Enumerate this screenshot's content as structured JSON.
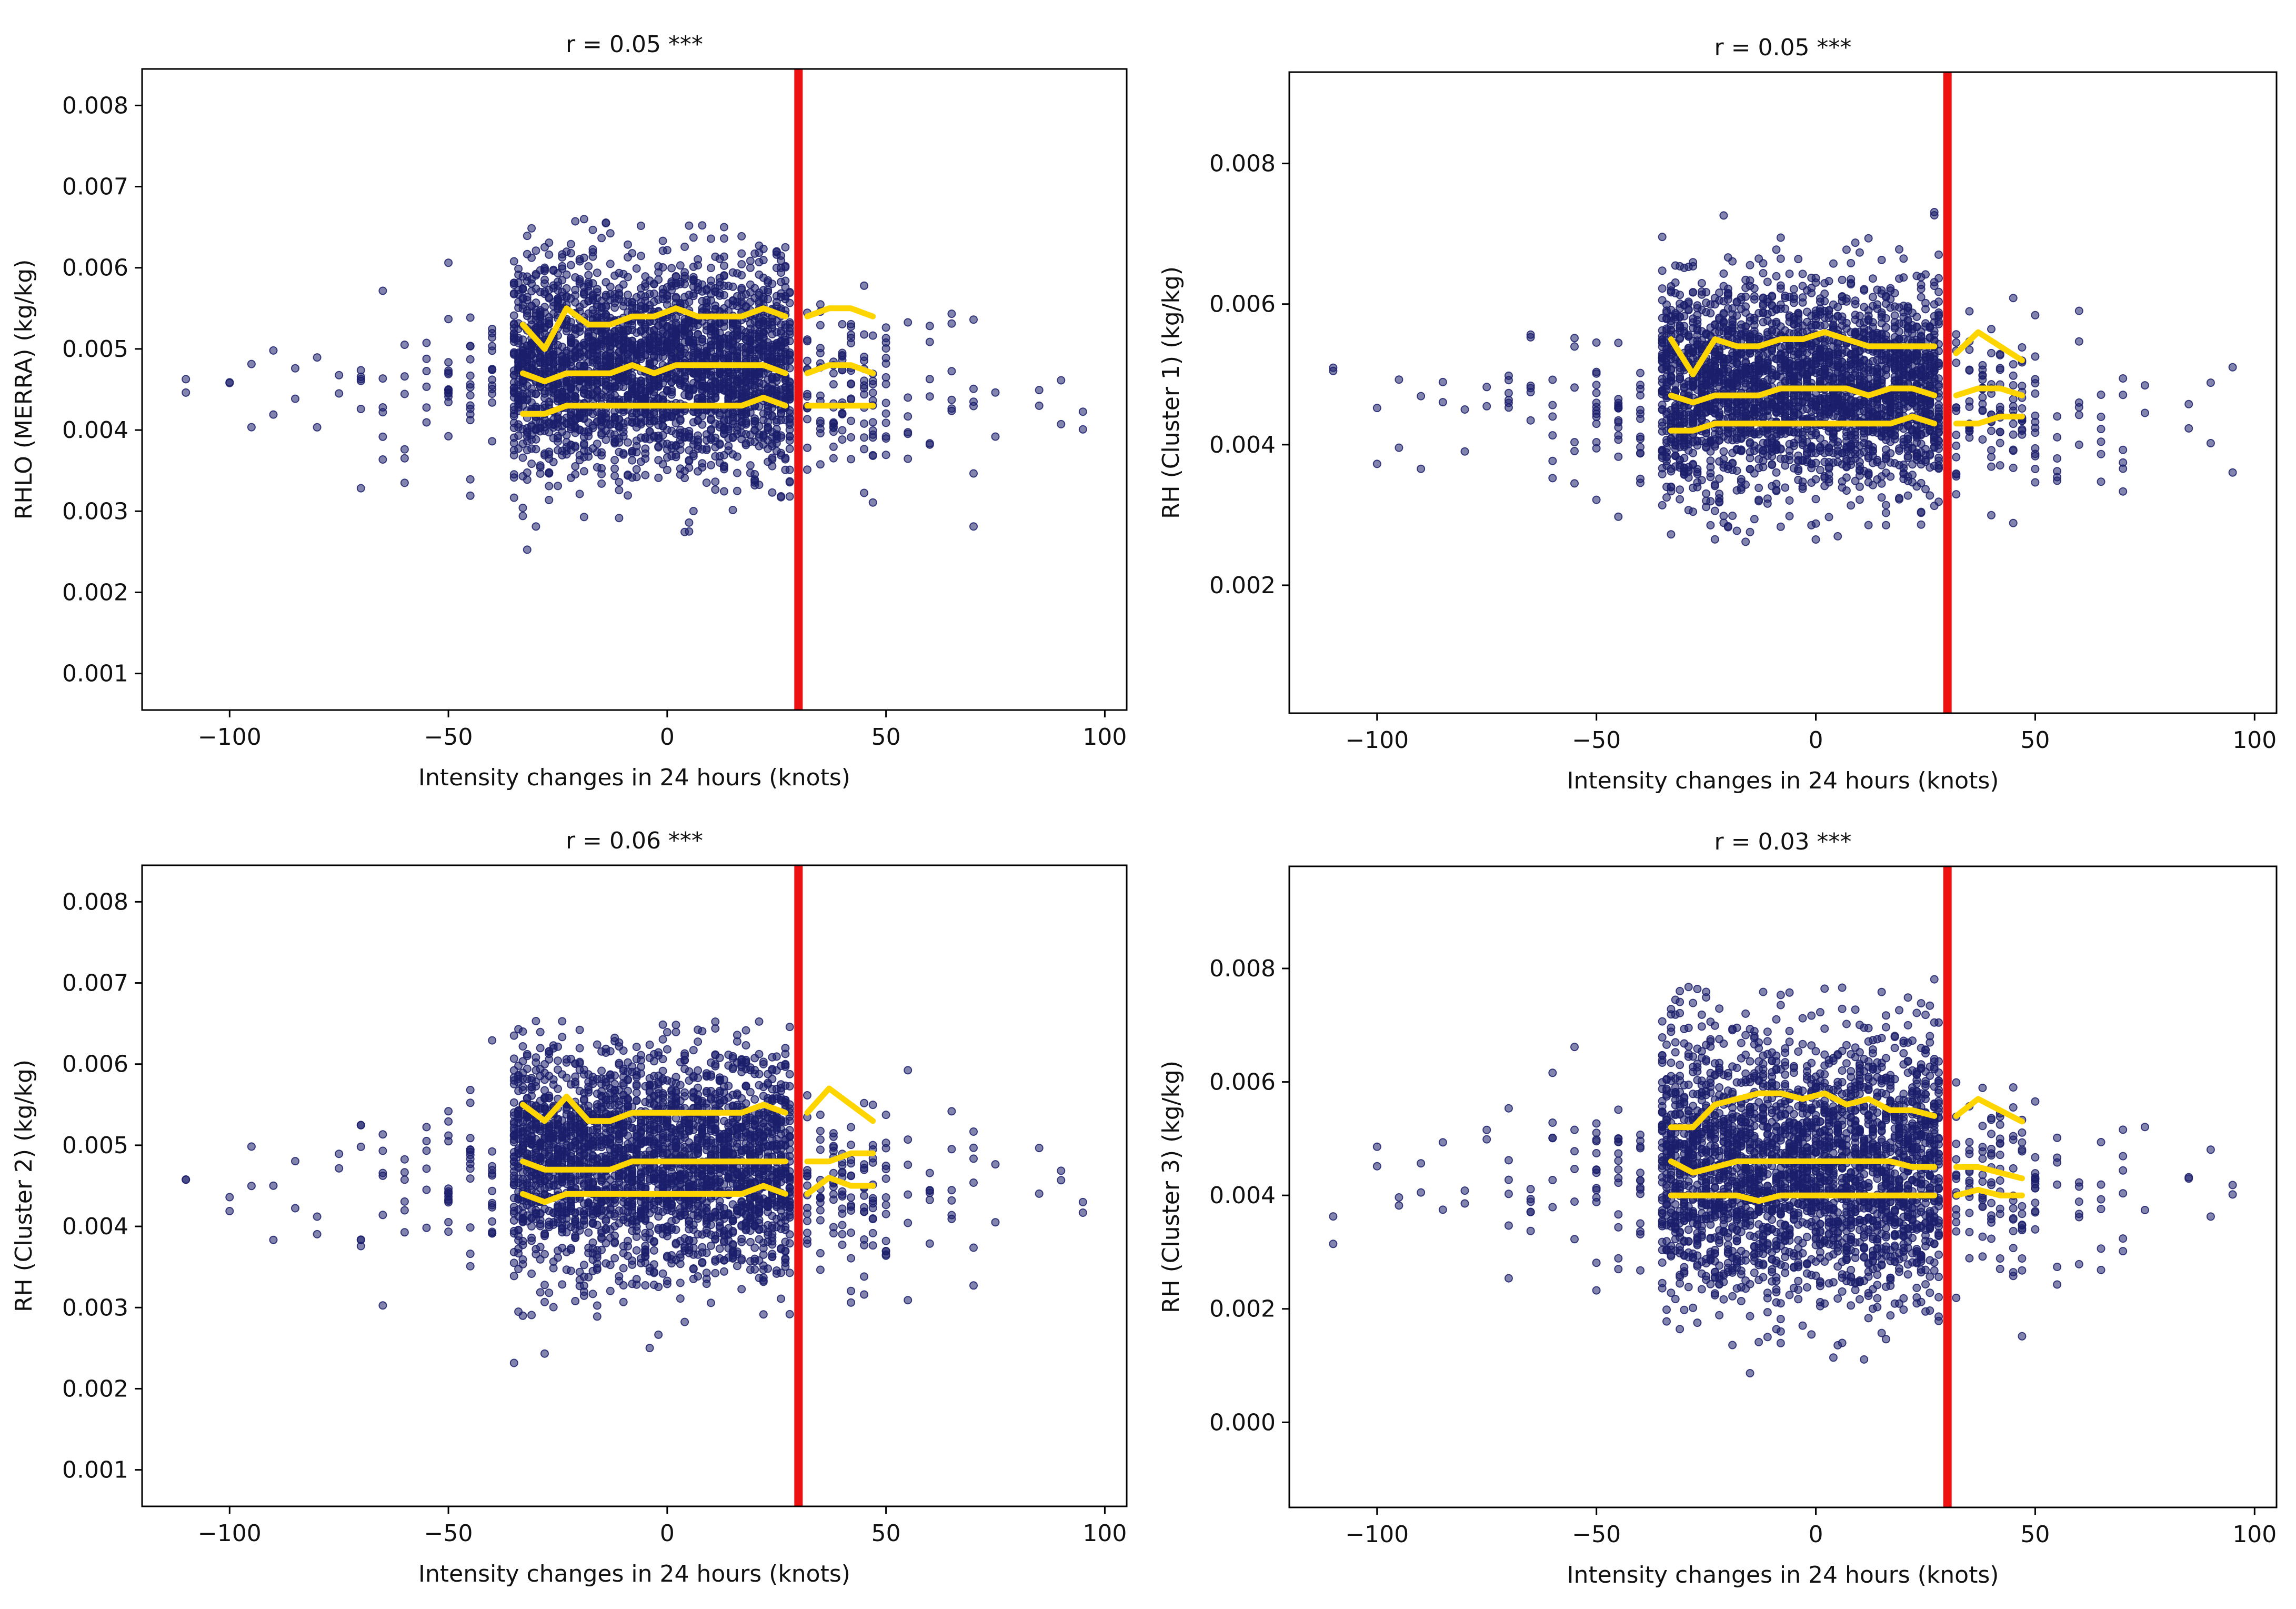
{
  "figure": {
    "marker_color": "#1b1f6b",
    "threshold_color": "#ee1111",
    "quantile_color": "#ffd500"
  },
  "chart_data": [
    {
      "type": "scatter",
      "title": "r = 0.05 ***",
      "xlabel": "Intensity changes in 24 hours (knots)",
      "ylabel": "RHLO (MERRA) (kg/kg)",
      "xlim": [
        -120,
        105
      ],
      "ylim": [
        0.00055,
        0.00845
      ],
      "xticks": [
        -100,
        -50,
        0,
        50,
        100
      ],
      "xtick_labels": [
        "−100",
        "−50",
        "0",
        "50",
        "100"
      ],
      "yticks": [
        0.001,
        0.002,
        0.003,
        0.004,
        0.005,
        0.006,
        0.007,
        0.008
      ],
      "ytick_labels": [
        "0.001",
        "0.002",
        "0.003",
        "0.004",
        "0.005",
        "0.006",
        "0.007",
        "0.008"
      ],
      "threshold_x": 30,
      "center": 0.0048,
      "spread": 0.00065,
      "max": 0.0066,
      "min": 0.0023,
      "quantiles": {
        "x": [
          -33,
          -28,
          -23,
          -18,
          -13,
          -8,
          -3,
          2,
          7,
          12,
          17,
          22,
          27,
          32,
          37,
          42,
          47
        ],
        "upper": [
          0.0053,
          0.005,
          0.0055,
          0.0053,
          0.0053,
          0.0054,
          0.0054,
          0.0055,
          0.0054,
          0.0054,
          0.0054,
          0.0055,
          0.0054,
          0.0054,
          0.0055,
          0.0055,
          0.0054
        ],
        "median": [
          0.0047,
          0.0046,
          0.0047,
          0.0047,
          0.0047,
          0.0048,
          0.0047,
          0.0048,
          0.0048,
          0.0048,
          0.0048,
          0.0048,
          0.0047,
          0.0047,
          0.0048,
          0.0048,
          0.0047
        ],
        "lower": [
          0.0042,
          0.0042,
          0.0043,
          0.0043,
          0.0043,
          0.0043,
          0.0043,
          0.0043,
          0.0043,
          0.0043,
          0.0043,
          0.0044,
          0.0043,
          0.0043,
          0.0043,
          0.0043,
          0.0043
        ]
      }
    },
    {
      "type": "scatter",
      "title": "r = 0.05 ***",
      "xlabel": "Intensity changes in 24 hours (knots)",
      "ylabel": "RH (Cluster 1) (kg/kg)",
      "xlim": [
        -120,
        105
      ],
      "ylim": [
        0.00018,
        0.0093
      ],
      "xticks": [
        -100,
        -50,
        0,
        50,
        100
      ],
      "xtick_labels": [
        "−100",
        "−50",
        "0",
        "50",
        "100"
      ],
      "yticks": [
        0.002,
        0.004,
        0.006,
        0.008
      ],
      "ytick_labels": [
        "0.002",
        "0.004",
        "0.006",
        "0.008"
      ],
      "threshold_x": 30,
      "center": 0.0048,
      "spread": 0.00075,
      "max": 0.0074,
      "min": 0.0019,
      "quantiles": {
        "x": [
          -33,
          -28,
          -23,
          -18,
          -13,
          -8,
          -3,
          2,
          7,
          12,
          17,
          22,
          27,
          32,
          37,
          42,
          47
        ],
        "upper": [
          0.0055,
          0.005,
          0.0055,
          0.0054,
          0.0054,
          0.0055,
          0.0055,
          0.0056,
          0.0055,
          0.0054,
          0.0054,
          0.0054,
          0.0054,
          0.0053,
          0.0056,
          0.0054,
          0.0052
        ],
        "median": [
          0.0047,
          0.0046,
          0.0047,
          0.0047,
          0.0047,
          0.0048,
          0.0048,
          0.0048,
          0.0048,
          0.0047,
          0.0048,
          0.0048,
          0.0047,
          0.0047,
          0.0048,
          0.0048,
          0.0047
        ],
        "lower": [
          0.0042,
          0.0042,
          0.0043,
          0.0043,
          0.0043,
          0.0043,
          0.0043,
          0.0043,
          0.0043,
          0.0043,
          0.0043,
          0.0044,
          0.0043,
          0.0043,
          0.0043,
          0.0044,
          0.0044
        ]
      }
    },
    {
      "type": "scatter",
      "title": "r = 0.06 ***",
      "xlabel": "Intensity changes in 24 hours (knots)",
      "ylabel": "RH (Cluster 2) (kg/kg)",
      "xlim": [
        -120,
        105
      ],
      "ylim": [
        0.00055,
        0.00845
      ],
      "xticks": [
        -100,
        -50,
        0,
        50,
        100
      ],
      "xtick_labels": [
        "−100",
        "−50",
        "0",
        "50",
        "100"
      ],
      "yticks": [
        0.001,
        0.002,
        0.003,
        0.004,
        0.005,
        0.006,
        0.007,
        0.008
      ],
      "ytick_labels": [
        "0.001",
        "0.002",
        "0.003",
        "0.004",
        "0.005",
        "0.006",
        "0.007",
        "0.008"
      ],
      "threshold_x": 30,
      "center": 0.0048,
      "spread": 0.0007,
      "max": 0.0066,
      "min": 0.002,
      "quantiles": {
        "x": [
          -33,
          -28,
          -23,
          -18,
          -13,
          -8,
          -3,
          2,
          7,
          12,
          17,
          22,
          27,
          32,
          37,
          42,
          47
        ],
        "upper": [
          0.0055,
          0.0053,
          0.0056,
          0.0053,
          0.0053,
          0.0054,
          0.0054,
          0.0054,
          0.0054,
          0.0054,
          0.0054,
          0.0055,
          0.0054,
          0.0054,
          0.0057,
          0.0055,
          0.0053
        ],
        "median": [
          0.0048,
          0.0047,
          0.0047,
          0.0047,
          0.0047,
          0.0048,
          0.0048,
          0.0048,
          0.0048,
          0.0048,
          0.0048,
          0.0048,
          0.0048,
          0.0048,
          0.0048,
          0.0049,
          0.0049
        ],
        "lower": [
          0.0044,
          0.0043,
          0.0044,
          0.0044,
          0.0044,
          0.0044,
          0.0044,
          0.0044,
          0.0044,
          0.0044,
          0.0044,
          0.0045,
          0.0044,
          0.0044,
          0.0046,
          0.0045,
          0.0045
        ]
      }
    },
    {
      "type": "scatter",
      "title": "r = 0.03 ***",
      "xlabel": "Intensity changes in 24 hours (knots)",
      "ylabel": "RH (Cluster 3) (kg/kg)",
      "xlim": [
        -120,
        105
      ],
      "ylim": [
        -0.0015,
        0.0098
      ],
      "xticks": [
        -100,
        -50,
        0,
        50,
        100
      ],
      "xtick_labels": [
        "−100",
        "−50",
        "0",
        "50",
        "100"
      ],
      "yticks": [
        0.0,
        0.002,
        0.004,
        0.006,
        0.008
      ],
      "ytick_labels": [
        "0.000",
        "0.002",
        "0.004",
        "0.006",
        "0.008"
      ],
      "threshold_x": 30,
      "center": 0.0045,
      "spread": 0.0012,
      "max": 0.0079,
      "min": 0.0004,
      "quantiles": {
        "x": [
          -33,
          -28,
          -23,
          -18,
          -13,
          -8,
          -3,
          2,
          7,
          12,
          17,
          22,
          27,
          32,
          37,
          42,
          47
        ],
        "upper": [
          0.0052,
          0.0052,
          0.0056,
          0.0057,
          0.0058,
          0.0058,
          0.0057,
          0.0058,
          0.0056,
          0.0057,
          0.0055,
          0.0055,
          0.0054,
          0.0054,
          0.0057,
          0.0055,
          0.0053
        ],
        "median": [
          0.0046,
          0.0044,
          0.0045,
          0.0046,
          0.0046,
          0.0046,
          0.0046,
          0.0046,
          0.0046,
          0.0046,
          0.0046,
          0.0045,
          0.0045,
          0.0045,
          0.0045,
          0.0044,
          0.0043
        ],
        "lower": [
          0.004,
          0.004,
          0.004,
          0.004,
          0.0039,
          0.004,
          0.004,
          0.004,
          0.004,
          0.004,
          0.004,
          0.004,
          0.004,
          0.004,
          0.0041,
          0.004,
          0.004
        ]
      }
    }
  ]
}
